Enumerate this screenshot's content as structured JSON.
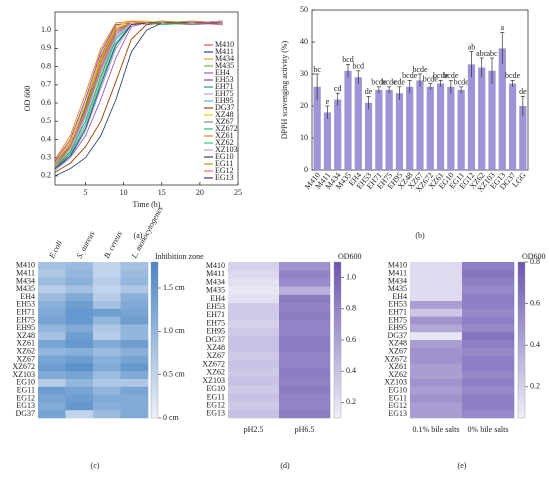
{
  "chart_data": [
    {
      "type": "line",
      "panel_label": "(a)",
      "x_label": "Time (h)",
      "y_label": "OD 600",
      "x": [
        1,
        3,
        5,
        7,
        9,
        11,
        13,
        15,
        19,
        23
      ],
      "xlim": [
        1,
        25
      ],
      "xticks": [
        5,
        10,
        15,
        20,
        25
      ],
      "ylim": [
        0.15,
        1.1
      ],
      "yticks": [
        0.2,
        0.3,
        0.4,
        0.5,
        0.6,
        0.7,
        0.8,
        0.9,
        {
          "value": 1,
          "label": "1.0"
        }
      ],
      "legend": "right",
      "series": [
        {
          "name": "M410",
          "color": "#d9534f",
          "values": [
            0.24,
            0.33,
            0.55,
            0.82,
            1.0,
            1.04,
            1.04,
            1.04,
            1.03,
            1.04
          ]
        },
        {
          "name": "M411",
          "color": "#2c3e9e",
          "values": [
            0.26,
            0.36,
            0.58,
            0.85,
            1.02,
            1.05,
            1.04,
            1.04,
            1.04,
            1.05
          ]
        },
        {
          "name": "M434",
          "color": "#e6a23c",
          "values": [
            0.27,
            0.38,
            0.6,
            0.86,
            1.03,
            1.04,
            1.05,
            1.04,
            1.04,
            1.03
          ]
        },
        {
          "name": "M435",
          "color": "#6ab04c",
          "values": [
            0.25,
            0.35,
            0.5,
            0.75,
            0.96,
            1.04,
            1.04,
            1.03,
            1.04,
            1.04
          ]
        },
        {
          "name": "EH4",
          "color": "#9b59b6",
          "values": [
            0.24,
            0.3,
            0.42,
            0.62,
            0.85,
            1.02,
            1.04,
            1.04,
            1.04,
            1.05
          ]
        },
        {
          "name": "EH53",
          "color": "#8e44ad",
          "values": [
            0.28,
            0.4,
            0.62,
            0.88,
            1.03,
            1.04,
            1.04,
            1.05,
            1.04,
            1.04
          ]
        },
        {
          "name": "EH71",
          "color": "#16a085",
          "values": [
            0.26,
            0.37,
            0.56,
            0.8,
            0.99,
            1.04,
            1.04,
            1.04,
            1.05,
            1.04
          ]
        },
        {
          "name": "EH75",
          "color": "#c0a0d8",
          "values": [
            0.25,
            0.34,
            0.52,
            0.78,
            0.97,
            1.04,
            1.03,
            1.04,
            1.04,
            1.03
          ]
        },
        {
          "name": "EH95",
          "color": "#5dade2",
          "values": [
            0.23,
            0.3,
            0.45,
            0.68,
            0.9,
            1.03,
            1.04,
            1.04,
            1.04,
            1.04
          ]
        },
        {
          "name": "DG37",
          "color": "#a04000",
          "values": [
            0.22,
            0.27,
            0.36,
            0.5,
            0.72,
            0.95,
            1.03,
            1.04,
            1.04,
            1.05
          ]
        },
        {
          "name": "XZ48",
          "color": "#f1c40f",
          "values": [
            0.27,
            0.39,
            0.6,
            0.84,
            1.02,
            1.05,
            1.05,
            1.04,
            1.04,
            1.04
          ]
        },
        {
          "name": "XZ67",
          "color": "#7f8c8d",
          "values": [
            0.26,
            0.36,
            0.54,
            0.79,
            0.98,
            1.04,
            1.04,
            1.04,
            1.03,
            1.04
          ]
        },
        {
          "name": "XZ672",
          "color": "#1abc9c",
          "values": [
            0.25,
            0.33,
            0.5,
            0.74,
            0.95,
            1.03,
            1.04,
            1.04,
            1.04,
            1.04
          ]
        },
        {
          "name": "XZ61",
          "color": "#e67e22",
          "values": [
            0.29,
            0.42,
            0.65,
            0.9,
            1.04,
            1.05,
            1.04,
            1.04,
            1.05,
            1.04
          ]
        },
        {
          "name": "XZ62",
          "color": "#2ecc71",
          "values": [
            0.24,
            0.32,
            0.48,
            0.72,
            0.93,
            1.03,
            1.04,
            1.03,
            1.04,
            1.04
          ]
        },
        {
          "name": "XZ103",
          "color": "#c39bd3",
          "values": [
            0.26,
            0.35,
            0.53,
            0.77,
            0.96,
            1.04,
            1.04,
            1.04,
            1.04,
            1.05
          ]
        },
        {
          "name": "EG10",
          "color": "#34495e",
          "values": [
            0.2,
            0.24,
            0.3,
            0.42,
            0.62,
            0.88,
            1.0,
            1.04,
            1.04,
            1.04
          ]
        },
        {
          "name": "EG11",
          "color": "#b7950b",
          "values": [
            0.25,
            0.36,
            0.57,
            0.83,
            1.01,
            1.04,
            1.04,
            1.05,
            1.04,
            1.04
          ]
        },
        {
          "name": "EG12",
          "color": "#ec7063",
          "values": [
            0.27,
            0.37,
            0.55,
            0.8,
            0.99,
            1.04,
            1.04,
            1.04,
            1.04,
            1.03
          ]
        },
        {
          "name": "EG13",
          "color": "#5b2c6f",
          "values": [
            0.24,
            0.31,
            0.46,
            0.7,
            0.92,
            1.03,
            1.04,
            1.04,
            1.04,
            1.04
          ]
        }
      ]
    },
    {
      "type": "bar",
      "panel_label": "(b)",
      "y_label": "DPPH scavenging activity (%)",
      "color": "#9d93d6",
      "categories": [
        "M410",
        "M411",
        "M434",
        "M435",
        "EH4",
        "EH53",
        "EH71",
        "EH75",
        "EH95",
        "XZ48",
        "XZ67",
        "XZ672",
        "XZ61",
        "EG10",
        "EG11",
        "EG12",
        "XZ62",
        "XZ103",
        "EG13",
        "DG37",
        "LGG"
      ],
      "values": [
        26,
        18,
        22,
        31,
        29,
        21,
        25,
        25,
        24,
        26,
        28,
        26,
        27,
        26,
        25,
        33,
        32,
        31,
        38,
        27,
        20
      ],
      "errors": [
        4,
        2,
        2,
        2,
        2,
        2,
        1,
        1,
        2,
        2,
        2,
        1,
        1,
        2,
        1,
        4,
        3,
        4,
        5,
        1,
        3
      ],
      "letters": [
        "bc",
        "e",
        "cd",
        "bcd",
        "bcd",
        "de",
        "bcde",
        "bcde",
        "cde",
        "bcde",
        "bcde",
        "bcde",
        "bcde",
        "bcde",
        "bcde",
        "ab",
        "abc",
        "abc",
        "a",
        "bcde",
        "de"
      ],
      "ylim": [
        0,
        50
      ],
      "yticks": [
        0,
        10,
        20,
        30,
        40,
        50
      ]
    },
    {
      "type": "heatmap",
      "panel_label": "(c)",
      "colorbar_title": "Inhibition zone",
      "column_labels_at": "top",
      "columns": [
        "E.coli",
        "S. aureus",
        "B. cereus",
        "L. monocytogenes"
      ],
      "rows": [
        "M410",
        "M411",
        "M434",
        "M435",
        "EH4",
        "EH53",
        "EH71",
        "EH75",
        "EH95",
        "XZ48",
        "XZ61",
        "XZ62",
        "XZ67",
        "XZ672",
        "XZ103",
        "EG10",
        "EG11",
        "EG12",
        "EG13",
        "DG37"
      ],
      "values": [
        [
          0.8,
          0.9,
          0.5,
          0.8
        ],
        [
          0.7,
          1.0,
          0.5,
          0.9
        ],
        [
          0.9,
          1.1,
          0.6,
          1.0
        ],
        [
          0.6,
          0.8,
          0.5,
          0.7
        ],
        [
          0.9,
          1.2,
          0.6,
          1.1
        ],
        [
          1.1,
          1.4,
          0.8,
          1.2
        ],
        [
          1.2,
          1.5,
          1.4,
          1.3
        ],
        [
          1.3,
          1.5,
          1.0,
          1.4
        ],
        [
          1.0,
          1.2,
          0.7,
          1.0
        ],
        [
          0.8,
          1.4,
          0.6,
          1.0
        ],
        [
          1.3,
          1.5,
          1.2,
          1.4
        ],
        [
          1.0,
          1.1,
          0.9,
          1.1
        ],
        [
          1.3,
          1.4,
          1.1,
          1.3
        ],
        [
          1.4,
          1.6,
          1.2,
          1.5
        ],
        [
          1.2,
          1.3,
          0.9,
          1.2
        ],
        [
          0.6,
          1.0,
          0.7,
          0.7
        ],
        [
          1.4,
          1.3,
          1.0,
          1.3
        ],
        [
          1.3,
          1.4,
          1.2,
          1.2
        ],
        [
          1.2,
          1.5,
          1.1,
          1.2
        ],
        [
          1.3,
          0.5,
          0.9,
          1.2
        ]
      ],
      "zlim": [
        0,
        1.8
      ],
      "zticks": [
        {
          "value": 0,
          "label": "0 cm"
        },
        {
          "value": 0.5,
          "label": "0.5 cm"
        },
        {
          "value": 1,
          "label": "1.0 cm"
        },
        {
          "value": 1.5,
          "label": "1.5 cm"
        }
      ],
      "colors": [
        "#eef1f8",
        "#4a86c5"
      ]
    },
    {
      "type": "heatmap",
      "panel_label": "(d)",
      "colorbar_title": "OD600",
      "column_labels_at": "bottom",
      "columns": [
        "pH2.5",
        "pH6.5"
      ],
      "rows": [
        "M410",
        "M411",
        "M434",
        "M435",
        "EH4",
        "EH53",
        "EH71",
        "EH75",
        "EH95",
        "DG37",
        "XZ48",
        "XZ67",
        "XZ672",
        "XZ62",
        "XZ103",
        "EG10",
        "EG11",
        "EG12",
        "EG13"
      ],
      "values": [
        [
          0.3,
          0.7
        ],
        [
          0.25,
          0.8
        ],
        [
          0.2,
          0.75
        ],
        [
          0.15,
          0.5
        ],
        [
          0.2,
          0.85
        ],
        [
          0.35,
          0.8
        ],
        [
          0.35,
          0.85
        ],
        [
          0.3,
          0.8
        ],
        [
          0.35,
          0.8
        ],
        [
          0.4,
          0.85
        ],
        [
          0.4,
          0.85
        ],
        [
          0.35,
          0.8
        ],
        [
          0.4,
          0.8
        ],
        [
          0.35,
          0.85
        ],
        [
          0.4,
          0.8
        ],
        [
          0.35,
          0.85
        ],
        [
          0.4,
          0.8
        ],
        [
          0.35,
          0.8
        ],
        [
          0.4,
          0.85
        ]
      ],
      "zlim": [
        0.1,
        1.1
      ],
      "zticks": [
        0.2,
        0.4,
        0.6,
        0.8,
        {
          "value": 1,
          "label": "1.0"
        }
      ],
      "colors": [
        "#f1eff9",
        "#6a55b0"
      ]
    },
    {
      "type": "heatmap",
      "panel_label": "(e)",
      "colorbar_title": "OD600",
      "column_labels_at": "bottom",
      "columns": [
        "0.1% bile salts",
        "0% bile salts"
      ],
      "rows": [
        "M410",
        "M411",
        "M434",
        "M435",
        "EH4",
        "EH53",
        "EH71",
        "EH75",
        "EH95",
        "DG37",
        "XZ48",
        "XZ67",
        "XZ672",
        "XZ61",
        "XZ62",
        "XZ103",
        "EG10",
        "EG11",
        "EG12",
        "EG13"
      ],
      "values": [
        [
          0.15,
          0.6
        ],
        [
          0.15,
          0.65
        ],
        [
          0.15,
          0.6
        ],
        [
          0.15,
          0.55
        ],
        [
          0.15,
          0.6
        ],
        [
          0.45,
          0.6
        ],
        [
          0.25,
          0.55
        ],
        [
          0.5,
          0.6
        ],
        [
          0.4,
          0.55
        ],
        [
          0.1,
          0.65
        ],
        [
          0.45,
          0.6
        ],
        [
          0.5,
          0.55
        ],
        [
          0.5,
          0.6
        ],
        [
          0.45,
          0.6
        ],
        [
          0.45,
          0.55
        ],
        [
          0.5,
          0.6
        ],
        [
          0.45,
          0.55
        ],
        [
          0.5,
          0.6
        ],
        [
          0.45,
          0.6
        ],
        [
          0.45,
          0.55
        ]
      ],
      "zlim": [
        0.05,
        0.8
      ],
      "zticks": [
        0.2,
        0.4,
        0.6,
        0.8
      ],
      "colors": [
        "#f1eff9",
        "#6a55b0"
      ]
    }
  ]
}
